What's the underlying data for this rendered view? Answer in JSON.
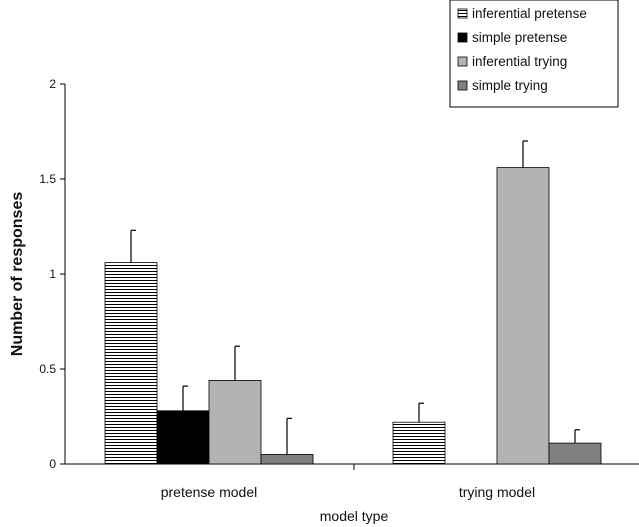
{
  "chart_data": {
    "type": "bar",
    "categories": [
      "pretense model",
      "trying model"
    ],
    "series": [
      {
        "name": "inferential pretense",
        "values": [
          1.06,
          0.22
        ],
        "errors": [
          0.17,
          0.1
        ],
        "fill": "hatch"
      },
      {
        "name": "simple pretense",
        "values": [
          0.28,
          0.0
        ],
        "errors": [
          0.13,
          0.0
        ],
        "fill": "#000000"
      },
      {
        "name": "inferential trying",
        "values": [
          0.44,
          1.56
        ],
        "errors": [
          0.18,
          0.14
        ],
        "fill": "#b3b3b3"
      },
      {
        "name": "simple trying",
        "values": [
          0.05,
          0.11
        ],
        "errors": [
          0.19,
          0.07
        ],
        "fill": "#808080"
      }
    ],
    "title": "",
    "xlabel": "model type",
    "ylabel": "Number of responses",
    "ylim": [
      0,
      2
    ],
    "yticks": [
      "0",
      "0.5",
      "1",
      "1.5",
      "2"
    ],
    "legend": "top-right",
    "grid": false
  }
}
